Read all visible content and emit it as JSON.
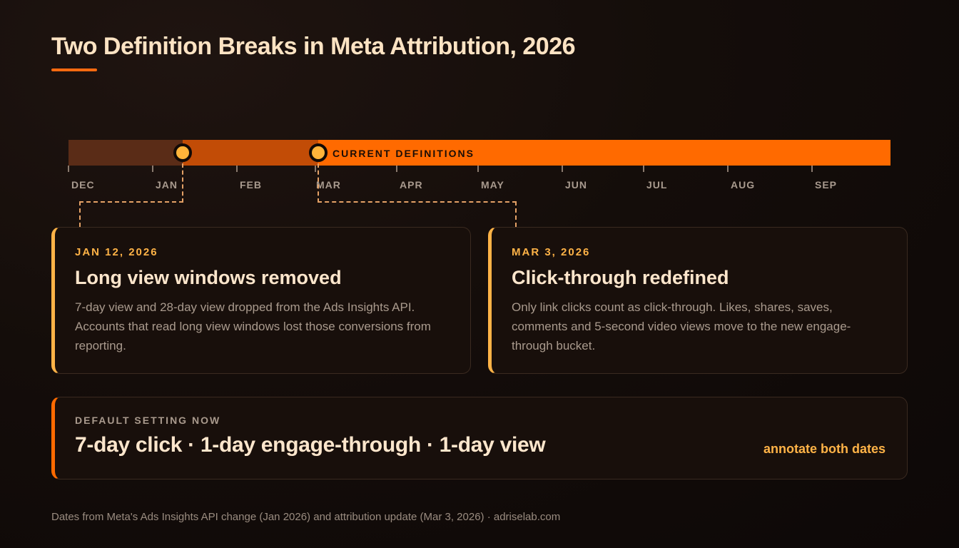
{
  "title": "Two Definition Breaks in Meta Attribution, 2026",
  "timeline": {
    "current_label": "CURRENT DEFINITIONS",
    "months": [
      "DEC",
      "JAN",
      "FEB",
      "MAR",
      "APR",
      "MAY",
      "JUN",
      "JUL",
      "AUG",
      "SEP"
    ]
  },
  "cards": [
    {
      "date": "JAN 12, 2026",
      "title": "Long view windows removed",
      "body": "7-day view and 28-day view dropped from the Ads Insights API. Accounts that read long view windows lost those conversions from reporting."
    },
    {
      "date": "MAR 3, 2026",
      "title": "Click-through redefined",
      "body": "Only link clicks count as click-through. Likes, shares, saves, comments and 5-second video views move to the new engage-through bucket."
    }
  ],
  "default_setting": {
    "label": "DEFAULT SETTING NOW",
    "value": "7-day click · 1-day engage-through · 1-day view",
    "annotation": "annotate both dates"
  },
  "footer": "Dates from Meta's Ads Insights API change (Jan 2026) and attribution update (Mar 3, 2026) · adriselab.com",
  "colors": {
    "accent": "#ff6a00",
    "highlight": "#ffb347",
    "background": "#140d0a"
  }
}
